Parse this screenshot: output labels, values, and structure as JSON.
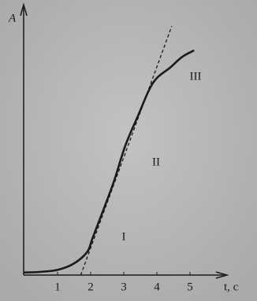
{
  "chart_data": {
    "type": "line",
    "y_label": "A",
    "x_label": "t, c",
    "x": [
      0,
      0.45,
      1.0,
      1.5,
      1.9,
      2.05,
      2.35,
      2.7,
      3.05,
      3.45,
      3.75,
      4.0,
      4.4,
      4.75,
      5.1
    ],
    "values": [
      0.1,
      0.12,
      0.2,
      0.45,
      0.9,
      1.4,
      2.4,
      3.6,
      5.0,
      6.2,
      7.1,
      7.6,
      8.0,
      8.4,
      8.65
    ],
    "color": "#1a1a1a",
    "tangent": {
      "x": [
        1.7,
        4.45
      ],
      "values": [
        0,
        9.6
      ]
    },
    "xlim": [
      0,
      5.9
    ],
    "ylim": [
      0,
      10
    ],
    "xticks": [
      1,
      2,
      3,
      4,
      5
    ],
    "annotations": [
      "I",
      "II",
      "III"
    ]
  }
}
